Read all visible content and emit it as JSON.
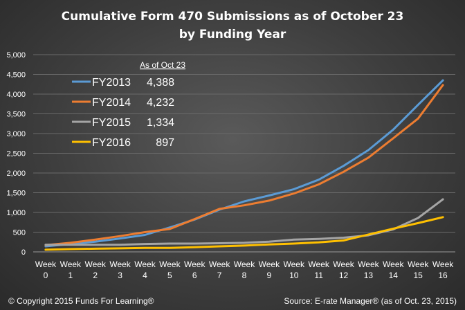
{
  "chart_data": {
    "type": "line",
    "title": [
      "Cumulative Form 470 Submissions as of October 23",
      "by Funding Year"
    ],
    "xlabel": "",
    "ylabel": "",
    "ylim": [
      0,
      5000
    ],
    "yticks": [
      "0",
      "500",
      "1,000",
      "1,500",
      "2,000",
      "2,500",
      "3,000",
      "3,500",
      "4,000",
      "4,500",
      "5,000"
    ],
    "ytick_values": [
      0,
      500,
      1000,
      1500,
      2000,
      2500,
      3000,
      3500,
      4000,
      4500,
      5000
    ],
    "categories": [
      [
        "Week",
        "0"
      ],
      [
        "Week",
        "1"
      ],
      [
        "Week",
        "2"
      ],
      [
        "Week",
        "3"
      ],
      [
        "Week",
        "4"
      ],
      [
        "Week",
        "5"
      ],
      [
        "Week",
        "6"
      ],
      [
        "Week",
        "7"
      ],
      [
        "Week",
        "8"
      ],
      [
        "Week",
        "9"
      ],
      [
        "Week",
        "10"
      ],
      [
        "Week",
        "11"
      ],
      [
        "Week",
        "12"
      ],
      [
        "Week",
        "13"
      ],
      [
        "Week",
        "14"
      ],
      [
        "Week",
        "15"
      ],
      [
        "Week",
        "16"
      ]
    ],
    "grid": "horizontal",
    "legend_position": "top-left",
    "legend_header": "As of Oct 23",
    "series": [
      {
        "name": "FY2013",
        "label_value": "4,388",
        "color": "#5b9bd5",
        "values": [
          140,
          200,
          260,
          340,
          430,
          620,
          820,
          1070,
          1280,
          1430,
          1590,
          1830,
          2180,
          2580,
          3100,
          3730,
          4350
        ]
      },
      {
        "name": "FY2014",
        "label_value": "4,232",
        "color": "#ed7d31",
        "values": [
          170,
          230,
          310,
          400,
          500,
          580,
          830,
          1090,
          1180,
          1300,
          1480,
          1710,
          2030,
          2390,
          2880,
          3380,
          4230
        ]
      },
      {
        "name": "FY2015",
        "label_value": "1,334",
        "color": "#a5a5a5",
        "values": [
          180,
          180,
          180,
          180,
          200,
          210,
          210,
          220,
          230,
          260,
          310,
          330,
          360,
          420,
          570,
          860,
          1334
        ]
      },
      {
        "name": "FY2016",
        "label_value": "897",
        "color": "#ffc000",
        "values": [
          55,
          70,
          80,
          90,
          100,
          100,
          120,
          140,
          160,
          190,
          210,
          240,
          290,
          440,
          590,
          730,
          880
        ]
      }
    ],
    "annotations": {
      "copyright": "© Copyright 2015 Funds For Learning®",
      "source": "Source: E-rate Manager® (as of Oct. 23, 2015)"
    }
  }
}
